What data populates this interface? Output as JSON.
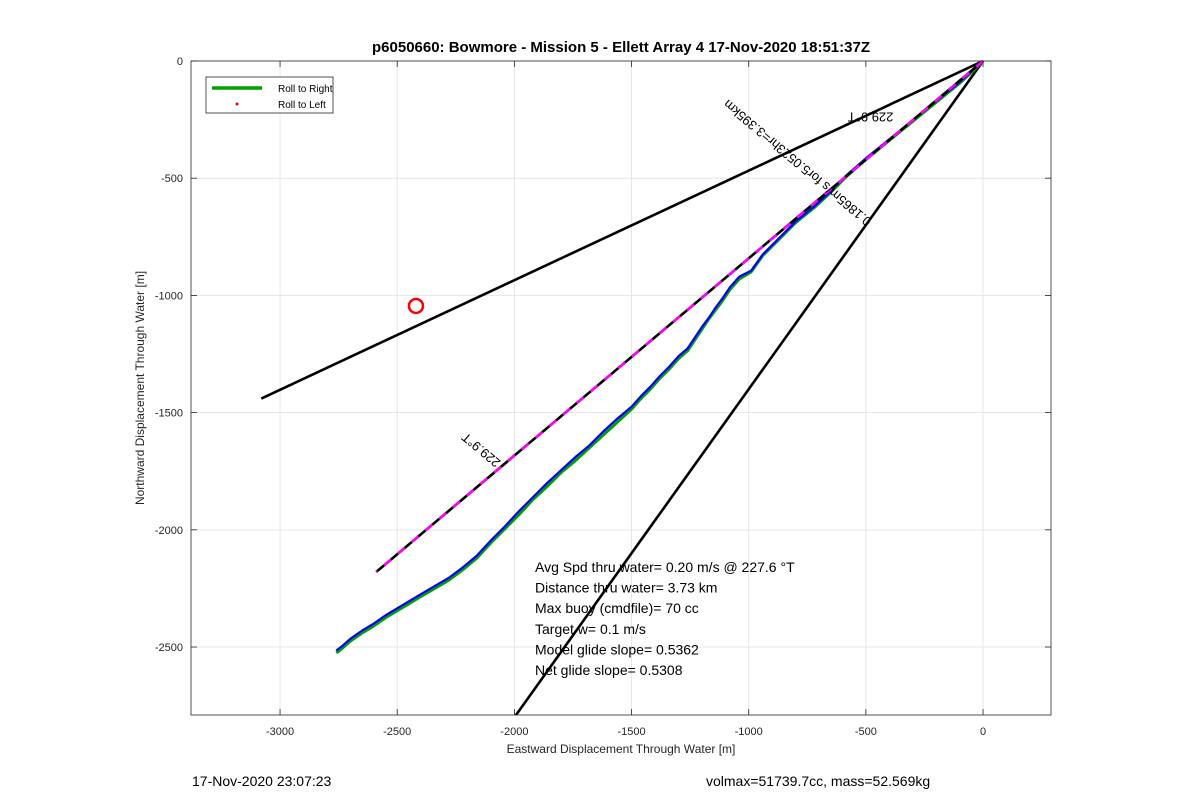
{
  "chart_data": {
    "type": "line",
    "title": "p6050660: Bowmore - Mission 5 - Ellett Array 4 17-Nov-2020 18:51:37Z",
    "xlabel": "Eastward Displacement Through Water [m]",
    "ylabel": "Northward Displacement Through Water [m]",
    "xlim": [
      -3380,
      290
    ],
    "ylim": [
      -2790,
      0
    ],
    "xticks": [
      -3000,
      -2500,
      -2000,
      -1500,
      -1000,
      -500,
      0
    ],
    "xtick_labels": [
      "-3000",
      "-2500",
      "-2000",
      "-1500",
      "-1000",
      "-500",
      "0"
    ],
    "yticks": [
      0,
      -500,
      -1000,
      -1500,
      -2000,
      -2500
    ],
    "ytick_labels": [
      "0",
      "-500",
      "-1000",
      "-1500",
      "-2000",
      "-2500"
    ],
    "grid": true,
    "legend_position": "top-left",
    "legend": [
      {
        "label": "Roll to Right",
        "color": "#00a000",
        "style": "line"
      },
      {
        "label": "Roll to Left",
        "color": "#ff0000",
        "style": "point"
      }
    ],
    "colors": {
      "track": "#0000ff",
      "heading": "#ff00ff",
      "boundary": "#000000",
      "target": "#ff0000"
    },
    "series": [
      {
        "name": "Roll to Right",
        "x": [
          0,
          -40,
          -100,
          -180,
          -260,
          -340,
          -420,
          -500,
          -580,
          -650,
          -720,
          -800,
          -870,
          -940,
          -990,
          -1040,
          -1080,
          -1110,
          -1140,
          -1170,
          -1200,
          -1230,
          -1260,
          -1300,
          -1340,
          -1380,
          -1420,
          -1460,
          -1500,
          -1560,
          -1620,
          -1680,
          -1740,
          -1800,
          -1860,
          -1920,
          -1980,
          -2040,
          -2100,
          -2160,
          -2220,
          -2280,
          -2340,
          -2400,
          -2450,
          -2500,
          -2550,
          -2600,
          -2650,
          -2700,
          -2740,
          -2760
        ],
        "y": [
          0,
          -40,
          -95,
          -160,
          -225,
          -290,
          -355,
          -420,
          -490,
          -560,
          -625,
          -690,
          -760,
          -830,
          -900,
          -930,
          -975,
          -1020,
          -1060,
          -1100,
          -1145,
          -1190,
          -1235,
          -1270,
          -1315,
          -1355,
          -1400,
          -1440,
          -1485,
          -1540,
          -1595,
          -1650,
          -1705,
          -1755,
          -1815,
          -1870,
          -1935,
          -1995,
          -2055,
          -2120,
          -2170,
          -2215,
          -2250,
          -2285,
          -2315,
          -2345,
          -2375,
          -2410,
          -2440,
          -2475,
          -2510,
          -2525
        ]
      },
      {
        "name": "",
        "x": [
          0,
          -40,
          -100,
          -180,
          -260,
          -340,
          -420,
          -500,
          -580,
          -650,
          -720,
          -800,
          -870,
          -940,
          -990,
          -1040,
          -1080,
          -1110,
          -1140,
          -1170,
          -1200,
          -1230,
          -1260,
          -1300,
          -1340,
          -1380,
          -1420,
          -1460,
          -1500,
          -1560,
          -1620,
          -1680,
          -1740,
          -1800,
          -1860,
          -1920,
          -1980,
          -2040,
          -2100,
          -2160,
          -2220,
          -2280,
          -2340,
          -2400,
          -2450,
          -2500,
          -2550,
          -2600,
          -2650,
          -2700,
          -2740,
          -2760
        ],
        "y": [
          0,
          -35,
          -90,
          -155,
          -220,
          -285,
          -350,
          -415,
          -485,
          -555,
          -620,
          -685,
          -755,
          -825,
          -895,
          -920,
          -965,
          -1010,
          -1050,
          -1095,
          -1135,
          -1180,
          -1225,
          -1260,
          -1305,
          -1345,
          -1390,
          -1430,
          -1475,
          -1525,
          -1580,
          -1640,
          -1690,
          -1745,
          -1800,
          -1860,
          -1920,
          -1985,
          -2045,
          -2110,
          -2160,
          -2205,
          -2240,
          -2275,
          -2305,
          -2335,
          -2365,
          -2400,
          -2430,
          -2465,
          -2500,
          -2515
        ]
      }
    ],
    "heading_line": {
      "x": [
        0,
        -2590
      ],
      "y": [
        0,
        -2180
      ],
      "label": "229.9°T"
    },
    "boundary_lines": [
      {
        "x": [
          0,
          -3080
        ],
        "y": [
          0,
          -1440
        ]
      },
      {
        "x": [
          0,
          -2000
        ],
        "y": [
          0,
          -2800
        ]
      }
    ],
    "target_marker": {
      "x": -2420,
      "y": -1045
    },
    "annotations": [
      {
        "text": "229.9°T",
        "x": -480,
        "y": -220,
        "rotate": 180
      },
      {
        "text": "0.1865m/s for5.0523hr=3.395km",
        "x": -780,
        "y": -420,
        "rotate": 220
      },
      {
        "text": "229.9°T",
        "x": -2130,
        "y": -1645,
        "rotate": 220
      }
    ],
    "stats": [
      "Avg Spd thru water=  0.20 m/s @ 227.6 °T",
      "Distance thru water=  3.73 km",
      "Max buoy (cmdfile)= 70 cc",
      "Target w= 0.1 m/s",
      "Model glide slope= 0.5362",
      "Net glide slope= 0.5308"
    ]
  },
  "footer": {
    "left": "17-Nov-2020 23:07:23",
    "right": "volmax=51739.7cc, mass=52.569kg"
  }
}
